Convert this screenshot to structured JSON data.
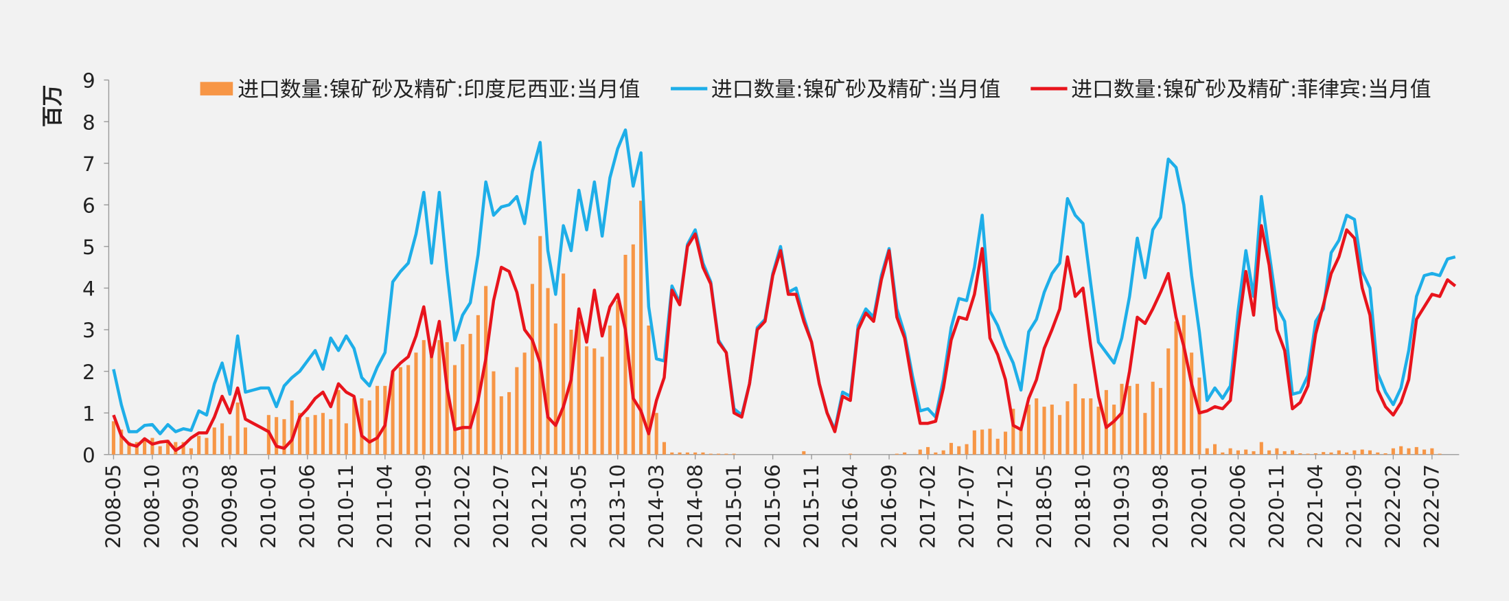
{
  "chart_data": {
    "type": "combo",
    "ylabel": "百万",
    "ylim": [
      0,
      9
    ],
    "yticks": [
      0,
      1,
      2,
      3,
      4,
      5,
      6,
      7,
      8,
      9
    ],
    "legend": "top",
    "categories": [
      "2008-05",
      null,
      null,
      null,
      null,
      "2008-10",
      null,
      null,
      null,
      null,
      "2009-03",
      null,
      null,
      null,
      null,
      "2009-08",
      null,
      null,
      null,
      null,
      "2010-01",
      null,
      null,
      null,
      null,
      "2010-06",
      null,
      null,
      null,
      null,
      "2010-11",
      null,
      null,
      null,
      null,
      "2011-04",
      null,
      null,
      null,
      null,
      "2011-09",
      null,
      null,
      null,
      null,
      "2012-02",
      null,
      null,
      null,
      null,
      "2012-07",
      null,
      null,
      null,
      null,
      "2012-12",
      null,
      null,
      null,
      null,
      "2013-05",
      null,
      null,
      null,
      null,
      "2013-10",
      null,
      null,
      null,
      null,
      "2014-03",
      null,
      null,
      null,
      null,
      "2014-08",
      null,
      null,
      null,
      null,
      "2015-01",
      null,
      null,
      null,
      null,
      "2015-06",
      null,
      null,
      null,
      null,
      "2015-11",
      null,
      null,
      null,
      null,
      "2016-04",
      null,
      null,
      null,
      null,
      "2016-09",
      null,
      null,
      null,
      null,
      "2017-02",
      null,
      null,
      null,
      null,
      "2017-07",
      null,
      null,
      null,
      null,
      "2017-12",
      null,
      null,
      null,
      null,
      "2018-05",
      null,
      null,
      null,
      null,
      "2018-10",
      null,
      null,
      null,
      null,
      "2019-03",
      null,
      null,
      null,
      null,
      "2019-08",
      null,
      null,
      null,
      null,
      "2020-01",
      null,
      null,
      null,
      null,
      "2020-06",
      null,
      null,
      null,
      null,
      "2020-11",
      null,
      null,
      null,
      null,
      "2021-04",
      null,
      null,
      null,
      null,
      "2021-09",
      null,
      null,
      null,
      null,
      "2022-02",
      null,
      null,
      null,
      null,
      "2022-07",
      null,
      null,
      null
    ],
    "series": [
      {
        "name": "进口数量:镍矿砂及精矿:印度尼西亚:当月值",
        "type": "bar",
        "color": "#f79646",
        "values": [
          0.8,
          0.6,
          0.3,
          0.3,
          0.35,
          0.4,
          0.2,
          0.35,
          0.3,
          0.3,
          0.15,
          0.45,
          0.4,
          0.65,
          0.75,
          0.45,
          1.25,
          0.65,
          0,
          0,
          0.95,
          0.9,
          0.85,
          1.3,
          1.0,
          0.9,
          0.95,
          1.0,
          0.85,
          1.55,
          0.75,
          1.35,
          1.35,
          1.3,
          1.65,
          1.65,
          2.0,
          2.1,
          2.15,
          2.45,
          2.75,
          2.6,
          2.75,
          2.7,
          2.15,
          2.65,
          2.9,
          3.35,
          4.05,
          2.0,
          1.4,
          1.5,
          2.1,
          2.45,
          4.1,
          5.25,
          4.0,
          3.15,
          4.35,
          3.0,
          3.2,
          2.6,
          2.55,
          2.35,
          3.1,
          3.7,
          4.8,
          5.05,
          6.1,
          3.1,
          1.0,
          0.3,
          0.05,
          0.05,
          0.05,
          0.05,
          0.05,
          0.02,
          0.02,
          0.02,
          0.02,
          0,
          0,
          0,
          0,
          0,
          0,
          0,
          0,
          0.08,
          0,
          0,
          0,
          0,
          0,
          0.02,
          0,
          0,
          0,
          0,
          0,
          0.02,
          0.05,
          0,
          0.12,
          0.18,
          0.05,
          0.1,
          0.28,
          0.2,
          0.25,
          0.58,
          0.6,
          0.62,
          0.38,
          0.55,
          1.1,
          0.6,
          1.2,
          1.35,
          1.15,
          1.2,
          0.95,
          1.28,
          1.7,
          1.35,
          1.35,
          1.15,
          1.55,
          1.2,
          1.7,
          1.65,
          1.7,
          1.0,
          1.75,
          1.6,
          2.55,
          3.2,
          3.35,
          2.45,
          1.85,
          0.15,
          0.25,
          0.05,
          0.15,
          0.1,
          0.12,
          0.08,
          0.3,
          0.1,
          0.15,
          0.08,
          0.1,
          0.03,
          0.02,
          0.03,
          0.06,
          0.05,
          0.1,
          0.05,
          0.1,
          0.12,
          0.1,
          0.05,
          0.03,
          0.15,
          0.2,
          0.15,
          0.18,
          0.12,
          0.15,
          0.02,
          0,
          0
        ]
      },
      {
        "name": "进口数量:镍矿砂及精矿:当月值",
        "type": "line",
        "color": "#1eaee8",
        "values": [
          2.05,
          1.2,
          0.55,
          0.55,
          0.7,
          0.72,
          0.5,
          0.72,
          0.55,
          0.62,
          0.58,
          1.05,
          0.95,
          1.7,
          2.2,
          1.45,
          2.85,
          1.5,
          1.55,
          1.6,
          1.6,
          1.15,
          1.65,
          1.85,
          2.0,
          2.25,
          2.5,
          2.05,
          2.8,
          2.5,
          2.85,
          2.55,
          1.85,
          1.65,
          2.1,
          2.45,
          4.15,
          4.4,
          4.6,
          5.3,
          6.3,
          4.6,
          6.3,
          4.4,
          2.75,
          3.35,
          3.65,
          4.8,
          6.55,
          5.75,
          5.95,
          6.0,
          6.2,
          5.55,
          6.8,
          7.5,
          4.9,
          3.85,
          5.5,
          4.9,
          6.35,
          5.4,
          6.55,
          5.25,
          6.65,
          7.35,
          7.8,
          6.45,
          7.25,
          3.55,
          2.3,
          2.25,
          4.05,
          3.65,
          5.05,
          5.4,
          4.6,
          4.15,
          2.75,
          2.45,
          1.1,
          0.95,
          1.7,
          3.05,
          3.25,
          4.35,
          5.0,
          3.9,
          4.0,
          3.3,
          2.7,
          1.7,
          1.0,
          0.6,
          1.5,
          1.4,
          3.1,
          3.5,
          3.3,
          4.3,
          4.95,
          3.5,
          2.9,
          1.9,
          1.05,
          1.1,
          0.9,
          1.8,
          3.05,
          3.75,
          3.7,
          4.5,
          5.75,
          3.45,
          3.1,
          2.6,
          2.2,
          1.55,
          2.95,
          3.25,
          3.9,
          4.35,
          4.6,
          6.15,
          5.75,
          5.55,
          4.1,
          2.7,
          2.45,
          2.2,
          2.8,
          3.8,
          5.2,
          4.25,
          5.4,
          5.7,
          7.1,
          6.9,
          6.0,
          4.3,
          2.95,
          1.3,
          1.6,
          1.35,
          1.65,
          3.45,
          4.9,
          3.8,
          6.2,
          4.85,
          3.55,
          3.2,
          1.45,
          1.5,
          1.9,
          3.2,
          3.5,
          4.85,
          5.15,
          5.75,
          5.65,
          4.4,
          4.0,
          1.95,
          1.5,
          1.2,
          1.6,
          2.5,
          3.8,
          4.3,
          4.35,
          4.3,
          4.7,
          4.75
        ]
      },
      {
        "name": "进口数量:镍矿砂及精矿:菲律宾:当月值",
        "type": "line",
        "color": "#e8141c",
        "values": [
          0.95,
          0.45,
          0.25,
          0.2,
          0.38,
          0.25,
          0.3,
          0.32,
          0.1,
          0.22,
          0.4,
          0.52,
          0.52,
          0.9,
          1.4,
          1.0,
          1.6,
          0.85,
          0.75,
          0.65,
          0.55,
          0.2,
          0.15,
          0.35,
          0.9,
          1.1,
          1.35,
          1.5,
          1.15,
          1.7,
          1.5,
          1.4,
          0.45,
          0.3,
          0.4,
          0.7,
          2.0,
          2.2,
          2.35,
          2.85,
          3.55,
          2.35,
          3.2,
          1.6,
          0.6,
          0.65,
          0.65,
          1.3,
          2.3,
          3.7,
          4.5,
          4.4,
          3.9,
          3.0,
          2.75,
          2.2,
          0.9,
          0.7,
          1.15,
          1.8,
          3.5,
          2.7,
          3.95,
          2.85,
          3.55,
          3.85,
          3.0,
          1.35,
          1.05,
          0.5,
          1.3,
          1.85,
          3.95,
          3.6,
          5.0,
          5.3,
          4.5,
          4.1,
          2.7,
          2.45,
          1.0,
          0.9,
          1.7,
          3.0,
          3.2,
          4.3,
          4.9,
          3.85,
          3.85,
          3.2,
          2.7,
          1.7,
          1.0,
          0.55,
          1.4,
          1.3,
          3.0,
          3.4,
          3.2,
          4.2,
          4.9,
          3.3,
          2.8,
          1.7,
          0.75,
          0.75,
          0.8,
          1.6,
          2.75,
          3.3,
          3.25,
          3.85,
          4.95,
          2.8,
          2.4,
          1.8,
          0.7,
          0.6,
          1.35,
          1.8,
          2.55,
          3.0,
          3.5,
          4.75,
          3.8,
          4.0,
          2.6,
          1.4,
          0.65,
          0.8,
          1.0,
          2.0,
          3.3,
          3.15,
          3.5,
          3.9,
          4.35,
          3.3,
          2.6,
          1.7,
          1.0,
          1.05,
          1.15,
          1.1,
          1.3,
          3.0,
          4.4,
          3.35,
          5.5,
          4.55,
          3.0,
          2.5,
          1.1,
          1.25,
          1.65,
          2.9,
          3.6,
          4.35,
          4.75,
          5.4,
          5.2,
          4.0,
          3.35,
          1.55,
          1.15,
          0.95,
          1.25,
          1.8,
          3.25,
          3.55,
          3.85,
          3.8,
          4.2,
          4.05
        ]
      }
    ]
  }
}
